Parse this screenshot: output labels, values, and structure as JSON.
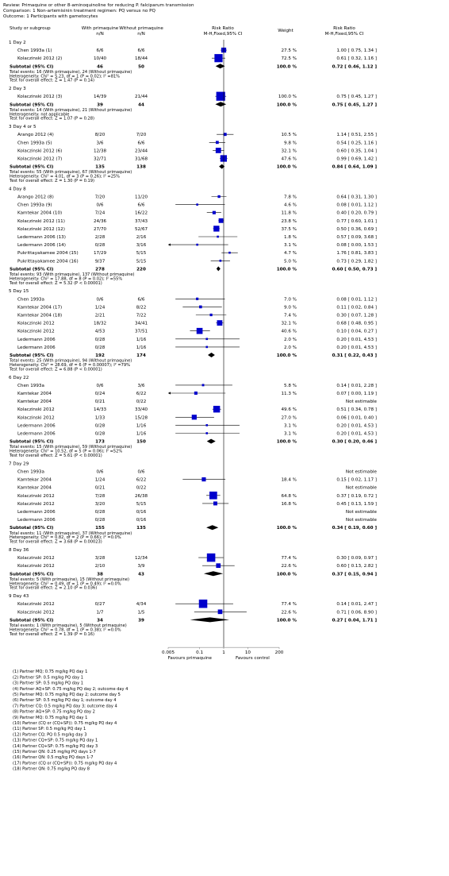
{
  "header": {
    "review": "Review:  Primaquine or other 8-aminoquinoline for reducing P. falciparum transmission",
    "comparison": "Comparison:  1 Non-artemisinin treatment regimen: PQ versus no PQ",
    "outcome": "Outcome:  1 Participants with gametocytes"
  },
  "columns": {
    "study": "Study or subgroup",
    "with": "With primaquine",
    "without": "Without primaquine",
    "nN": "n/N",
    "rr": "Risk Ratio",
    "method": "M-H,Fixed,95% CI",
    "weight": "Weight",
    "rr2": "Risk Ratio",
    "method2": "M-H,Fixed,95% CI"
  },
  "axis": {
    "ticks": [
      "0.005",
      "0.1",
      "1",
      "10",
      "200"
    ],
    "tick_values": [
      0.005,
      0.1,
      1,
      10,
      200
    ],
    "left_label": "Favours primaquine",
    "right_label": "Favours control"
  },
  "chart_data": {
    "type": "forest",
    "scale": "log",
    "xlim": [
      0.005,
      200
    ],
    "subgroups": [
      {
        "title": "1 Day 2",
        "studies": [
          {
            "name": "Chen 1993a (1)",
            "with": "6/6",
            "without": "6/6",
            "weight": "27.5 %",
            "ci": "1.00 [ 0.75, 1.34 ]",
            "rr": 1.0,
            "lo": 0.75,
            "hi": 1.34,
            "w": 27.5
          },
          {
            "name": "Kolaczinski 2012 (2)",
            "with": "10/40",
            "without": "18/44",
            "weight": "72.5 %",
            "ci": "0.61 [ 0.32, 1.16 ]",
            "rr": 0.61,
            "lo": 0.32,
            "hi": 1.16,
            "w": 72.5
          }
        ],
        "subtotal": {
          "label": "Subtotal (95% CI)",
          "with": "46",
          "without": "50",
          "weight": "100.0 %",
          "ci": "0.72 [ 0.46, 1.12 ]",
          "rr": 0.72,
          "lo": 0.46,
          "hi": 1.12
        },
        "notes": [
          "Total events: 16 (With primaquine), 24 (Without primaquine)",
          "Heterogeneity: Chi² = 5.23, df = 1 (P = 0.02); I² =81%",
          "Test for overall effect: Z = 1.47 (P = 0.14)"
        ]
      },
      {
        "title": "2 Day 3",
        "studies": [
          {
            "name": "Kolaczinski 2012 (3)",
            "with": "14/39",
            "without": "21/44",
            "weight": "100.0 %",
            "ci": "0.75 [ 0.45, 1.27 ]",
            "rr": 0.75,
            "lo": 0.45,
            "hi": 1.27,
            "w": 100.0
          }
        ],
        "subtotal": {
          "label": "Subtotal (95% CI)",
          "with": "39",
          "without": "44",
          "weight": "100.0 %",
          "ci": "0.75 [ 0.45, 1.27 ]",
          "rr": 0.75,
          "lo": 0.45,
          "hi": 1.27
        },
        "notes": [
          "Total events: 14 (With primaquine), 21 (Without primaquine)",
          "Heterogeneity: not applicable",
          "Test for overall effect: Z = 1.07 (P = 0.28)"
        ]
      },
      {
        "title": "3 Day 4 or 5",
        "studies": [
          {
            "name": "Arango 2012 (4)",
            "with": "8/20",
            "without": "7/20",
            "weight": "10.5 %",
            "ci": "1.14 [ 0.51, 2.55 ]",
            "rr": 1.14,
            "lo": 0.51,
            "hi": 2.55,
            "w": 10.5
          },
          {
            "name": "Chen 1993a (5)",
            "with": "3/6",
            "without": "6/6",
            "weight": "9.8 %",
            "ci": "0.54 [ 0.25, 1.16 ]",
            "rr": 0.54,
            "lo": 0.25,
            "hi": 1.16,
            "w": 9.8
          },
          {
            "name": "Kolaczinski 2012 (6)",
            "with": "12/38",
            "without": "23/44",
            "weight": "32.1 %",
            "ci": "0.60 [ 0.35, 1.04 ]",
            "rr": 0.6,
            "lo": 0.35,
            "hi": 1.04,
            "w": 32.1
          },
          {
            "name": "Kolaczinski 2012 (7)",
            "with": "32/71",
            "without": "31/68",
            "weight": "47.6 %",
            "ci": "0.99 [ 0.69, 1.42 ]",
            "rr": 0.99,
            "lo": 0.69,
            "hi": 1.42,
            "w": 47.6
          }
        ],
        "subtotal": {
          "label": "Subtotal (95% CI)",
          "with": "135",
          "without": "138",
          "weight": "100.0 %",
          "ci": "0.84 [ 0.64, 1.09 ]",
          "rr": 0.84,
          "lo": 0.64,
          "hi": 1.09
        },
        "notes": [
          "Total events: 55 (With primaquine), 67 (Without primaquine)",
          "Heterogeneity: Chi² = 4.01, df = 3 (P = 0.26); I² =25%",
          "Test for overall effect: Z = 1.30 (P = 0.19)"
        ]
      },
      {
        "title": "4 Day 8",
        "studies": [
          {
            "name": "Arango 2012 (8)",
            "with": "7/20",
            "without": "11/20",
            "weight": "7.8 %",
            "ci": "0.64 [ 0.31, 1.30 ]",
            "rr": 0.64,
            "lo": 0.31,
            "hi": 1.3,
            "w": 7.8
          },
          {
            "name": "Chen 1993a (9)",
            "with": "0/6",
            "without": "6/6",
            "weight": "4.6 %",
            "ci": "0.08 [ 0.01, 1.12 ]",
            "rr": 0.08,
            "lo": 0.01,
            "hi": 1.12,
            "w": 4.6
          },
          {
            "name": "Kamtekar 2004 (10)",
            "with": "7/24",
            "without": "16/22",
            "weight": "11.8 %",
            "ci": "0.40 [ 0.20, 0.79 ]",
            "rr": 0.4,
            "lo": 0.2,
            "hi": 0.79,
            "w": 11.8
          },
          {
            "name": "Kolaczinski 2012 (11)",
            "with": "24/36",
            "without": "37/43",
            "weight": "23.8 %",
            "ci": "0.77 [ 0.60, 1.01 ]",
            "rr": 0.77,
            "lo": 0.6,
            "hi": 1.01,
            "w": 23.8
          },
          {
            "name": "Kolaczinski 2012 (12)",
            "with": "27/70",
            "without": "52/67",
            "weight": "37.5 %",
            "ci": "0.50 [ 0.36, 0.69 ]",
            "rr": 0.5,
            "lo": 0.36,
            "hi": 0.69,
            "w": 37.5
          },
          {
            "name": "Ledermann 2006 (13)",
            "with": "2/28",
            "without": "2/16",
            "weight": "1.8 %",
            "ci": "0.57 [ 0.09, 3.68 ]",
            "rr": 0.57,
            "lo": 0.09,
            "hi": 3.68,
            "w": 1.8
          },
          {
            "name": "Ledermann 2006 (14)",
            "with": "0/28",
            "without": "3/16",
            "weight": "3.1 %",
            "ci": "0.08 [ 0.00, 1.53 ]",
            "rr": 0.08,
            "lo": 0.004,
            "hi": 1.53,
            "w": 3.1
          },
          {
            "name": "Pukrittayakamee 2004 (15)",
            "with": "17/29",
            "without": "5/15",
            "weight": "4.7 %",
            "ci": "1.76 [ 0.81, 3.83 ]",
            "rr": 1.76,
            "lo": 0.81,
            "hi": 3.83,
            "w": 4.7
          },
          {
            "name": "Pukrittayakamee 2004 (16)",
            "with": "9/37",
            "without": "5/15",
            "weight": "5.0 %",
            "ci": "0.73 [ 0.29, 1.82 ]",
            "rr": 0.73,
            "lo": 0.29,
            "hi": 1.82,
            "w": 5.0
          }
        ],
        "subtotal": {
          "label": "Subtotal (95% CI)",
          "with": "278",
          "without": "220",
          "weight": "100.0 %",
          "ci": "0.60 [ 0.50, 0.73 ]",
          "rr": 0.6,
          "lo": 0.5,
          "hi": 0.73
        },
        "notes": [
          "Total events: 93 (With primaquine), 137 (Without primaquine)",
          "Heterogeneity: Chi² = 17.88, df = 8 (P = 0.02); I² =55%",
          "Test for overall effect: Z = 5.32 (P < 0.00001)"
        ]
      },
      {
        "title": "5 Day 15",
        "studies": [
          {
            "name": "Chen 1993a",
            "with": "0/6",
            "without": "6/6",
            "weight": "7.0 %",
            "ci": "0.08 [ 0.01, 1.12 ]",
            "rr": 0.08,
            "lo": 0.01,
            "hi": 1.12,
            "w": 7.0
          },
          {
            "name": "Kamtekar 2004 (17)",
            "with": "1/24",
            "without": "8/22",
            "weight": "9.0 %",
            "ci": "0.11 [ 0.02, 0.84 ]",
            "rr": 0.11,
            "lo": 0.02,
            "hi": 0.84,
            "w": 9.0
          },
          {
            "name": "Kamtekar 2004 (18)",
            "with": "2/21",
            "without": "7/22",
            "weight": "7.4 %",
            "ci": "0.30 [ 0.07, 1.28 ]",
            "rr": 0.3,
            "lo": 0.07,
            "hi": 1.28,
            "w": 7.4
          },
          {
            "name": "Kolaczinski 2012",
            "with": "18/32",
            "without": "34/41",
            "weight": "32.1 %",
            "ci": "0.68 [ 0.48, 0.95 ]",
            "rr": 0.68,
            "lo": 0.48,
            "hi": 0.95,
            "w": 32.1
          },
          {
            "name": "Kolaczinski 2012",
            "with": "4/53",
            "without": "37/51",
            "weight": "40.6 %",
            "ci": "0.10 [ 0.04, 0.27 ]",
            "rr": 0.1,
            "lo": 0.04,
            "hi": 0.27,
            "w": 40.6
          },
          {
            "name": "Ledermann 2006",
            "with": "0/28",
            "without": "1/16",
            "weight": "2.0 %",
            "ci": "0.20 [ 0.01, 4.53 ]",
            "rr": 0.2,
            "lo": 0.01,
            "hi": 4.53,
            "w": 2.0
          },
          {
            "name": "Ledermann 2006",
            "with": "0/28",
            "without": "1/16",
            "weight": "2.0 %",
            "ci": "0.20 [ 0.01, 4.53 ]",
            "rr": 0.2,
            "lo": 0.01,
            "hi": 4.53,
            "w": 2.0
          }
        ],
        "subtotal": {
          "label": "Subtotal (95% CI)",
          "with": "192",
          "without": "174",
          "weight": "100.0 %",
          "ci": "0.31 [ 0.22, 0.43 ]",
          "rr": 0.31,
          "lo": 0.22,
          "hi": 0.43
        },
        "notes": [
          "Total events: 25 (With primaquine), 94 (Without primaquine)",
          "Heterogeneity: Chi² = 28.69, df = 6 (P = 0.00007); I² =79%",
          "Test for overall effect: Z = 6.88 (P < 0.00001)"
        ]
      },
      {
        "title": "6 Day 22",
        "studies": [
          {
            "name": "Chen 1993a",
            "with": "0/6",
            "without": "3/6",
            "weight": "5.8 %",
            "ci": "0.14 [ 0.01, 2.28 ]",
            "rr": 0.14,
            "lo": 0.01,
            "hi": 2.28,
            "w": 5.8
          },
          {
            "name": "Kamtekar 2004",
            "with": "0/24",
            "without": "6/22",
            "weight": "11.3 %",
            "ci": "0.07 [ 0.00, 1.19 ]",
            "rr": 0.07,
            "lo": 0.004,
            "hi": 1.19,
            "w": 11.3
          },
          {
            "name": "Kamtekar 2004",
            "with": "0/21",
            "without": "0/22",
            "weight": "",
            "ci": "Not estimable"
          },
          {
            "name": "Kolaczinski 2012",
            "with": "14/33",
            "without": "33/40",
            "weight": "49.6 %",
            "ci": "0.51 [ 0.34, 0.78 ]",
            "rr": 0.51,
            "lo": 0.34,
            "hi": 0.78,
            "w": 49.6
          },
          {
            "name": "Kolaczinski 2012",
            "with": "1/33",
            "without": "15/28",
            "weight": "27.0 %",
            "ci": "0.06 [ 0.01, 0.40 ]",
            "rr": 0.06,
            "lo": 0.01,
            "hi": 0.4,
            "w": 27.0
          },
          {
            "name": "Ledermann 2006",
            "with": "0/28",
            "without": "1/16",
            "weight": "3.1 %",
            "ci": "0.20 [ 0.01, 4.53 ]",
            "rr": 0.2,
            "lo": 0.01,
            "hi": 4.53,
            "w": 3.1
          },
          {
            "name": "Ledermann 2006",
            "with": "0/28",
            "without": "1/16",
            "weight": "3.1 %",
            "ci": "0.20 [ 0.01, 4.53 ]",
            "rr": 0.2,
            "lo": 0.01,
            "hi": 4.53,
            "w": 3.1
          }
        ],
        "subtotal": {
          "label": "Subtotal (95% CI)",
          "with": "173",
          "without": "150",
          "weight": "100.0 %",
          "ci": "0.30 [ 0.20, 0.46 ]",
          "rr": 0.3,
          "lo": 0.2,
          "hi": 0.46
        },
        "notes": [
          "Total events: 15 (With primaquine), 59 (Without primaquine)",
          "Heterogeneity: Chi² = 10.52, df = 5 (P = 0.06); I² =52%",
          "Test for overall effect: Z = 5.61 (P < 0.00001)"
        ]
      },
      {
        "title": "7 Day 29",
        "studies": [
          {
            "name": "Chen 1993a",
            "with": "0/6",
            "without": "0/6",
            "weight": "",
            "ci": "Not estimable"
          },
          {
            "name": "Kamtekar 2004",
            "with": "1/24",
            "without": "6/22",
            "weight": "18.4 %",
            "ci": "0.15 [ 0.02, 1.17 ]",
            "rr": 0.15,
            "lo": 0.02,
            "hi": 1.17,
            "w": 18.4
          },
          {
            "name": "Kamtekar 2004",
            "with": "0/21",
            "without": "0/22",
            "weight": "",
            "ci": "Not estimable"
          },
          {
            "name": "Kolaczinski 2012",
            "with": "7/28",
            "without": "26/38",
            "weight": "64.8 %",
            "ci": "0.37 [ 0.19, 0.72 ]",
            "rr": 0.37,
            "lo": 0.19,
            "hi": 0.72,
            "w": 64.8
          },
          {
            "name": "Kolaczinski 2012",
            "with": "3/20",
            "without": "5/15",
            "weight": "16.8 %",
            "ci": "0.45 [ 0.13, 1.59 ]",
            "rr": 0.45,
            "lo": 0.13,
            "hi": 1.59,
            "w": 16.8
          },
          {
            "name": "Ledermann 2006",
            "with": "0/28",
            "without": "0/16",
            "weight": "",
            "ci": "Not estimable"
          },
          {
            "name": "Ledermann 2006",
            "with": "0/28",
            "without": "0/16",
            "weight": "",
            "ci": "Not estimable"
          }
        ],
        "subtotal": {
          "label": "Subtotal (95% CI)",
          "with": "155",
          "without": "135",
          "weight": "100.0 %",
          "ci": "0.34 [ 0.19, 0.60 ]",
          "rr": 0.34,
          "lo": 0.19,
          "hi": 0.6
        },
        "notes": [
          "Total events: 11 (With primaquine), 37 (Without primaquine)",
          "Heterogeneity: Chi² = 0.82, df = 2 (P = 0.66); I² =0.0%",
          "Test for overall effect: Z = 3.68 (P = 0.00023)"
        ]
      },
      {
        "title": "8 Day 36",
        "studies": [
          {
            "name": "Kolaczinski 2012",
            "with": "3/28",
            "without": "12/34",
            "weight": "77.4 %",
            "ci": "0.30 [ 0.09, 0.97 ]",
            "rr": 0.3,
            "lo": 0.09,
            "hi": 0.97,
            "w": 77.4
          },
          {
            "name": "Kolaczinski 2012",
            "with": "2/10",
            "without": "3/9",
            "weight": "22.6 %",
            "ci": "0.60 [ 0.13, 2.82 ]",
            "rr": 0.6,
            "lo": 0.13,
            "hi": 2.82,
            "w": 22.6
          }
        ],
        "subtotal": {
          "label": "Subtotal (95% CI)",
          "with": "38",
          "without": "43",
          "weight": "100.0 %",
          "ci": "0.37 [ 0.15, 0.94 ]",
          "rr": 0.37,
          "lo": 0.15,
          "hi": 0.94
        },
        "notes": [
          "Total events: 5 (With primaquine), 15 (Without primaquine)",
          "Heterogeneity: Chi² = 0.49, df = 1 (P = 0.49); I² =0.0%",
          "Test for overall effect: Z = 2.10 (P = 0.036)"
        ]
      },
      {
        "title": "9 Day 43",
        "studies": [
          {
            "name": "Kolaczinski 2012",
            "with": "0/27",
            "without": "4/34",
            "weight": "77.4 %",
            "ci": "0.14 [ 0.01, 2.47 ]",
            "rr": 0.14,
            "lo": 0.01,
            "hi": 2.47,
            "w": 77.4
          },
          {
            "name": "Kolaczinski 2012",
            "with": "1/7",
            "without": "1/5",
            "weight": "22.6 %",
            "ci": "0.71 [ 0.06, 8.90 ]",
            "rr": 0.71,
            "lo": 0.06,
            "hi": 8.9,
            "w": 22.6
          }
        ],
        "subtotal": {
          "label": "Subtotal (95% CI)",
          "with": "34",
          "without": "39",
          "weight": "100.0 %",
          "ci": "0.27 [ 0.04, 1.71 ]",
          "rr": 0.27,
          "lo": 0.04,
          "hi": 1.71
        },
        "notes": [
          "Total events: 1 (With primaquine), 5 (Without primaquine)",
          "Heterogeneity: Chi² = 0.78, df = 1 (P = 0.38); I² =0.0%",
          "Test for overall effect: Z = 1.39 (P = 0.16)"
        ]
      }
    ]
  },
  "footnotes": [
    "(1) Partner MQ; 0.75 mg/kg PQ day 1",
    "(2) Partner SP: 0.5 mg/kg PQ day 1",
    "(3) Partner SP: 0.5 mg/kg PQ day 1",
    "(4) Partner AQ+SP: 0.75 mg/kg PQ day 2; outcome day 4",
    "(5) Partner MQ: 0.75 mg/kg PQ day 2; outcome day 5",
    "(6) Partner SP: 0.5 mg/kg PQ day 1; outcome day 4",
    "(7) Partner CQ: 0.5 mg/kg PQ day 3; outcome day 4",
    "(8) Partner AQ+SP: 0.75 mg/kg PQ day 2",
    "(9) Partner MQ: 0.75 mg/kg PQ day 1",
    "(10) Partner (CQ or (CQ+SP)): 0.75 mg/kg PQ day 4",
    "(11) Partner SP: 0.5 mg/kg PQ day 1",
    "(12) Partner CQ; PQ 0.5 mg/kg day 3",
    "(13) Partner CQ+SP: 0.75 mg/kg PQ day 1",
    "(14) Partner CQ+SP: 0.75 mg/kg PQ day 3",
    "(15) Partner QN: 0.25 mg/kg PQ days 1-7",
    "(16) Partner QN: 0.5 mg/kg PQ days 1-7",
    "(17) Partner (CQ or (CQ+SP)): 0.75 mg/kg PQ day 4",
    "(18) Partner QN: 0.75 mg/kg PQ day 8"
  ],
  "colors": {
    "box": "#0000cc",
    "line": "#000000",
    "axis": "#888888"
  }
}
